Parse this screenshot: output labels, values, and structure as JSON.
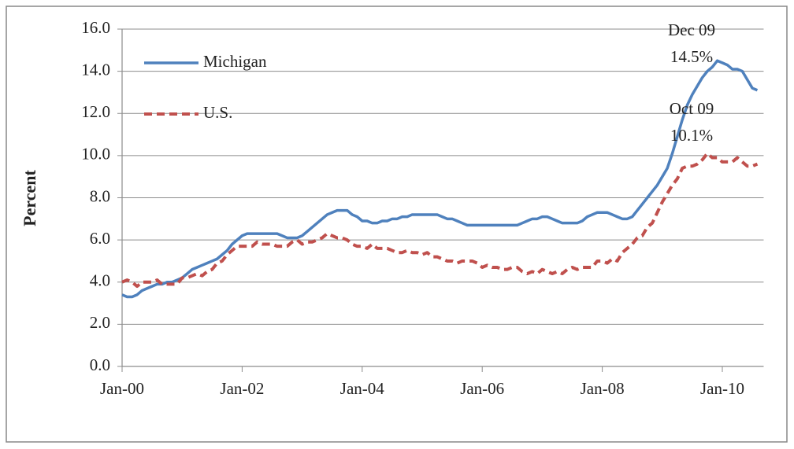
{
  "chart_data": {
    "type": "line",
    "y_label": "Percent",
    "categories": [
      "Jan-00",
      "Feb-00",
      "Mar-00",
      "Apr-00",
      "May-00",
      "Jun-00",
      "Jul-00",
      "Aug-00",
      "Sep-00",
      "Oct-00",
      "Nov-00",
      "Dec-00",
      "Jan-01",
      "Feb-01",
      "Mar-01",
      "Apr-01",
      "May-01",
      "Jun-01",
      "Jul-01",
      "Aug-01",
      "Sep-01",
      "Oct-01",
      "Nov-01",
      "Dec-01",
      "Jan-02",
      "Feb-02",
      "Mar-02",
      "Apr-02",
      "May-02",
      "Jun-02",
      "Jul-02",
      "Aug-02",
      "Sep-02",
      "Oct-02",
      "Nov-02",
      "Dec-02",
      "Jan-03",
      "Feb-03",
      "Mar-03",
      "Apr-03",
      "May-03",
      "Jun-03",
      "Jul-03",
      "Aug-03",
      "Sep-03",
      "Oct-03",
      "Nov-03",
      "Dec-03",
      "Jan-04",
      "Feb-04",
      "Mar-04",
      "Apr-04",
      "May-04",
      "Jun-04",
      "Jul-04",
      "Aug-04",
      "Sep-04",
      "Oct-04",
      "Nov-04",
      "Dec-04",
      "Jan-05",
      "Feb-05",
      "Mar-05",
      "Apr-05",
      "May-05",
      "Jun-05",
      "Jul-05",
      "Aug-05",
      "Sep-05",
      "Oct-05",
      "Nov-05",
      "Dec-05",
      "Jan-06",
      "Feb-06",
      "Mar-06",
      "Apr-06",
      "May-06",
      "Jun-06",
      "Jul-06",
      "Aug-06",
      "Sep-06",
      "Oct-06",
      "Nov-06",
      "Dec-06",
      "Jan-07",
      "Feb-07",
      "Mar-07",
      "Apr-07",
      "May-07",
      "Jun-07",
      "Jul-07",
      "Aug-07",
      "Sep-07",
      "Oct-07",
      "Nov-07",
      "Dec-07",
      "Jan-08",
      "Feb-08",
      "Mar-08",
      "Apr-08",
      "May-08",
      "Jun-08",
      "Jul-08",
      "Aug-08",
      "Sep-08",
      "Oct-08",
      "Nov-08",
      "Dec-08",
      "Jan-09",
      "Feb-09",
      "Mar-09",
      "Apr-09",
      "May-09",
      "Jun-09",
      "Jul-09",
      "Aug-09",
      "Sep-09",
      "Oct-09",
      "Nov-09",
      "Dec-09",
      "Jan-10",
      "Feb-10",
      "Mar-10",
      "Apr-10",
      "May-10",
      "Jun-10",
      "Jul-10",
      "Aug-10"
    ],
    "series": [
      {
        "name": "Michigan",
        "color": "#4f81bd",
        "dashed": false,
        "values": [
          3.4,
          3.3,
          3.3,
          3.4,
          3.6,
          3.7,
          3.8,
          3.9,
          3.9,
          4.0,
          4.0,
          4.1,
          4.2,
          4.4,
          4.6,
          4.7,
          4.8,
          4.9,
          5.0,
          5.1,
          5.3,
          5.5,
          5.8,
          6.0,
          6.2,
          6.3,
          6.3,
          6.3,
          6.3,
          6.3,
          6.3,
          6.3,
          6.2,
          6.1,
          6.1,
          6.1,
          6.2,
          6.4,
          6.6,
          6.8,
          7.0,
          7.2,
          7.3,
          7.4,
          7.4,
          7.4,
          7.2,
          7.1,
          6.9,
          6.9,
          6.8,
          6.8,
          6.9,
          6.9,
          7.0,
          7.0,
          7.1,
          7.1,
          7.2,
          7.2,
          7.2,
          7.2,
          7.2,
          7.2,
          7.1,
          7.0,
          7.0,
          6.9,
          6.8,
          6.7,
          6.7,
          6.7,
          6.7,
          6.7,
          6.7,
          6.7,
          6.7,
          6.7,
          6.7,
          6.7,
          6.8,
          6.9,
          7.0,
          7.0,
          7.1,
          7.1,
          7.0,
          6.9,
          6.8,
          6.8,
          6.8,
          6.8,
          6.9,
          7.1,
          7.2,
          7.3,
          7.3,
          7.3,
          7.2,
          7.1,
          7.0,
          7.0,
          7.1,
          7.4,
          7.7,
          8.0,
          8.3,
          8.6,
          9.0,
          9.4,
          10.1,
          10.9,
          11.7,
          12.4,
          12.9,
          13.3,
          13.7,
          14.0,
          14.2,
          14.5,
          14.4,
          14.3,
          14.1,
          14.1,
          14.0,
          13.6,
          13.2,
          13.1
        ]
      },
      {
        "name": "U.S.",
        "color": "#c0504d",
        "dashed": true,
        "values": [
          4.0,
          4.1,
          4.0,
          3.8,
          4.0,
          4.0,
          4.0,
          4.1,
          3.9,
          3.9,
          3.9,
          3.9,
          4.2,
          4.2,
          4.3,
          4.4,
          4.3,
          4.5,
          4.6,
          4.9,
          5.0,
          5.3,
          5.5,
          5.7,
          5.7,
          5.7,
          5.7,
          5.9,
          5.8,
          5.8,
          5.8,
          5.7,
          5.7,
          5.7,
          5.9,
          6.0,
          5.8,
          5.9,
          5.9,
          6.0,
          6.1,
          6.3,
          6.2,
          6.1,
          6.1,
          6.0,
          5.8,
          5.7,
          5.7,
          5.6,
          5.8,
          5.6,
          5.6,
          5.6,
          5.5,
          5.4,
          5.4,
          5.5,
          5.4,
          5.4,
          5.3,
          5.4,
          5.2,
          5.2,
          5.1,
          5.0,
          5.0,
          4.9,
          5.0,
          5.0,
          5.0,
          4.9,
          4.7,
          4.8,
          4.7,
          4.7,
          4.6,
          4.6,
          4.7,
          4.7,
          4.5,
          4.4,
          4.5,
          4.4,
          4.6,
          4.5,
          4.4,
          4.5,
          4.4,
          4.6,
          4.7,
          4.6,
          4.7,
          4.7,
          4.7,
          5.0,
          5.0,
          4.9,
          5.1,
          5.0,
          5.4,
          5.6,
          5.8,
          6.1,
          6.2,
          6.6,
          6.8,
          7.3,
          7.8,
          8.2,
          8.6,
          8.9,
          9.4,
          9.5,
          9.5,
          9.6,
          9.8,
          10.1,
          9.9,
          9.9,
          9.7,
          9.7,
          9.7,
          9.9,
          9.7,
          9.5,
          9.5,
          9.6
        ]
      }
    ],
    "ylim": [
      0,
      16
    ],
    "yticks": [
      {
        "value": 0,
        "label": "0.0"
      },
      {
        "value": 2,
        "label": "2.0"
      },
      {
        "value": 4,
        "label": "4.0"
      },
      {
        "value": 6,
        "label": "6.0"
      },
      {
        "value": 8,
        "label": "8.0"
      },
      {
        "value": 10,
        "label": "10.0"
      },
      {
        "value": 12,
        "label": "12.0"
      },
      {
        "value": 14,
        "label": "14.0"
      },
      {
        "value": 16,
        "label": "16.0"
      }
    ],
    "grid": true,
    "legend": "upper left",
    "annotations": [
      {
        "lines": [
          "Dec 09",
          "14.5%"
        ]
      },
      {
        "lines": [
          "Oct 09",
          "10.1%"
        ]
      }
    ]
  }
}
